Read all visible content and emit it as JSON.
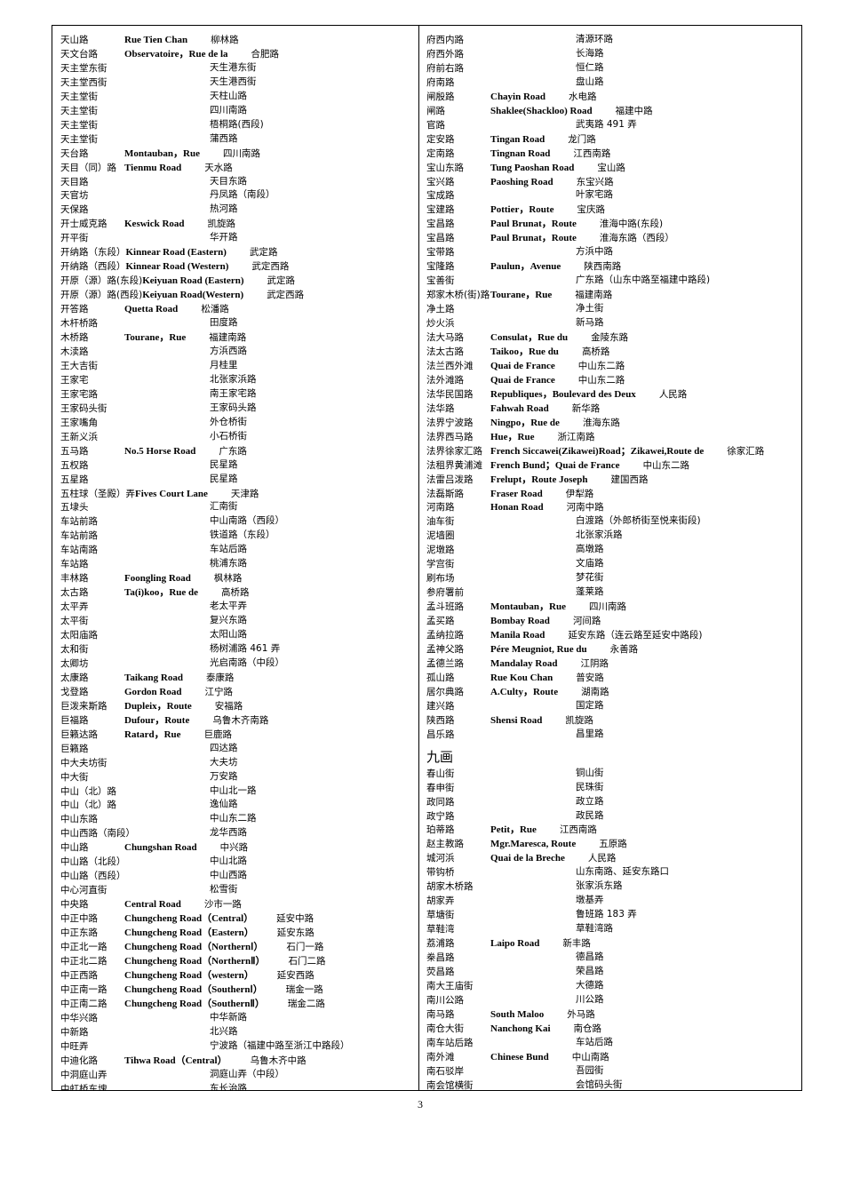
{
  "left_rows": [
    [
      "天山路",
      "Rue Tien Chan",
      "柳林路"
    ],
    [
      "天文台路",
      "Observatoire，Rue de la",
      "合肥路"
    ],
    [
      "天主堂东街",
      "",
      "天生港东街"
    ],
    [
      "天主堂西街",
      "",
      "天生港西街"
    ],
    [
      "天主堂街",
      "",
      "天柱山路"
    ],
    [
      "天主堂街",
      "",
      "四川南路"
    ],
    [
      "天主堂街",
      "",
      "梧桐路(西段)"
    ],
    [
      "天主堂街",
      "",
      "蒲西路"
    ],
    [
      "天台路",
      "Montauban，Rue",
      "四川南路"
    ],
    [
      "天目（同）路",
      "Tienmu Road",
      "天水路"
    ],
    [
      "天目路",
      "",
      "天目东路"
    ],
    [
      "天官坊",
      "",
      "丹凤路（南段）"
    ],
    [
      "天保路",
      "",
      "热河路"
    ],
    [
      "开士威克路",
      "Keswick Road",
      "凯旋路"
    ],
    [
      "开平街",
      "",
      "华开路"
    ],
    [
      "开纳路（东段）",
      "Kinnear Road (Eastern)",
      "武定路"
    ],
    [
      "开纳路（西段）",
      "Kinnear Road (Western)",
      "武定西路"
    ],
    [
      "开原（源）路(东段)",
      "Keiyuan Road (Eastern)",
      "武定路"
    ],
    [
      "开原（源）路(西段)",
      "Keiyuan Road(Western)",
      "武定西路"
    ],
    [
      "开答路",
      "Quetta Road",
      "松潘路"
    ],
    [
      "木杆桥路",
      "",
      "田度路"
    ],
    [
      "木桥路",
      "Tourane，Rue",
      "福建南路"
    ],
    [
      "木渎路",
      "",
      "方浜西路"
    ],
    [
      "王大吉街",
      "",
      "月桂里"
    ],
    [
      "王家宅",
      "",
      "北张家浜路"
    ],
    [
      "王家宅路",
      "",
      "南王家宅路"
    ],
    [
      "王家码头街",
      "",
      "王家码头路"
    ],
    [
      "王家嘴角",
      "",
      "外仓桥街"
    ],
    [
      "王新义浜",
      "",
      "小石桥街"
    ],
    [
      "五马路",
      "No.5 Horse Road",
      "广东路"
    ],
    [
      "五权路",
      "",
      "民星路"
    ],
    [
      "五星路",
      "",
      "民星路"
    ],
    [
      "五柱球（圣殿）弄",
      "Fives Court Lane",
      "天津路"
    ],
    [
      "五埭头",
      "",
      "汇南街"
    ],
    [
      "车站前路",
      "",
      "中山南路（西段）"
    ],
    [
      "车站前路",
      "",
      "铁道路（东段）"
    ],
    [
      "车站南路",
      "",
      "车站后路"
    ],
    [
      "车站路",
      "",
      "桃浦东路"
    ],
    [
      "丰林路",
      "Foongling Road",
      "枫林路"
    ],
    [
      "太古路",
      "Ta(i)koo，Rue de",
      "高桥路"
    ],
    [
      "太平弄",
      "",
      "老太平弄"
    ],
    [
      "太平街",
      "",
      "复兴东路"
    ],
    [
      "太阳庙路",
      "",
      "太阳山路"
    ],
    [
      "太和街",
      "",
      "杨树浦路 461 弄"
    ],
    [
      "太卿坊",
      "",
      "光启南路（中段）"
    ],
    [
      "太康路",
      "Taikang Road",
      "泰康路"
    ],
    [
      "戈登路",
      "Gordon Road",
      "江宁路"
    ],
    [
      "巨泼来斯路",
      "Dupleix，Route",
      "安福路"
    ],
    [
      "巨福路",
      "Dufour，Route",
      "乌鲁木齐南路"
    ],
    [
      "巨籁达路",
      "Ratard，Rue",
      "巨鹿路"
    ],
    [
      "巨籁路",
      "",
      "四达路"
    ],
    [
      "中大夫坊街",
      "",
      "大夫坊"
    ],
    [
      "中大街",
      "",
      "万安路"
    ],
    [
      "中山（北）路",
      "",
      "中山北一路"
    ],
    [
      "中山（北）路",
      "",
      "逸仙路"
    ],
    [
      "中山东路",
      "",
      "中山东二路"
    ],
    [
      "中山西路（南段）",
      "",
      "龙华西路"
    ],
    [
      "中山路",
      "Chungshan Road",
      "中兴路"
    ],
    [
      "中山路（北段）",
      "",
      "中山北路"
    ],
    [
      "中山路（西段）",
      "",
      "中山西路"
    ],
    [
      "中心河直街",
      "",
      "松雪街"
    ],
    [
      "中央路",
      "Central Road",
      "沙市一路"
    ],
    [
      "中正中路",
      "Chungcheng Road（Central）",
      "延安中路"
    ],
    [
      "中正东路",
      "Chungcheng Road（Eastern）",
      "延安东路"
    ],
    [
      "中正北一路",
      "Chungcheng Road（NorthernⅠ）",
      "石门一路"
    ],
    [
      "中正北二路",
      "Chungcheng Road（NorthernⅡ）",
      "石门二路"
    ],
    [
      "中正西路",
      "Chungcheng Road（western）",
      "延安西路"
    ],
    [
      "中正南一路",
      "Chungcheng Road（SouthernⅠ）",
      "瑞金一路"
    ],
    [
      "中正南二路",
      "Chungcheng Road（SouthernⅡ）",
      "瑞金二路"
    ],
    [
      "中华兴路",
      "",
      "中华新路"
    ],
    [
      "中新路",
      "",
      "北兴路"
    ],
    [
      "中旺弄",
      "",
      "宁波路（福建中路至浙江中路段）"
    ],
    [
      "中迪化路",
      "Tihwa Road（Central）",
      "乌鲁木齐中路"
    ],
    [
      "中洞庭山弄",
      "",
      "洞庭山弄（中段）"
    ],
    [
      "中虹桥东塊",
      "",
      "东长治路"
    ]
  ],
  "right_rows": [
    [
      "府西内路",
      "",
      "清源环路"
    ],
    [
      "府西外路",
      "",
      "长海路"
    ],
    [
      "府前右路",
      "",
      "恒仁路"
    ],
    [
      "府南路",
      "",
      "盘山路"
    ],
    [
      "闸殷路",
      "Chayin Road",
      "水电路"
    ],
    [
      "闸路",
      "Shaklee(Shackloo) Road",
      "福建中路"
    ],
    [
      "官路",
      "",
      "武夷路 491 弄"
    ],
    [
      "定安路",
      "Tingan Road",
      "龙门路"
    ],
    [
      "定南路",
      "Tingnan Road",
      "江西南路"
    ],
    [
      "宝山东路",
      "Tung Paoshan Road",
      "宝山路"
    ],
    [
      "宝兴路",
      "Paoshing Road",
      "东宝兴路"
    ],
    [
      "宝成路",
      "",
      "叶家宅路"
    ],
    [
      "宝建路",
      "Pottier，Route",
      "宝庆路"
    ],
    [
      "宝昌路",
      "Paul Brunat，Route",
      "淮海中路(东段)"
    ],
    [
      "宝昌路",
      "Paul Brunat，Route",
      "淮海东路（西段）"
    ],
    [
      "宝带路",
      "",
      "方浜中路"
    ],
    [
      "宝隆路",
      "Paulun，Avenue",
      "陕西南路"
    ],
    [
      "宝善街",
      "",
      "广东路（山东中路至福建中路段)"
    ],
    [
      "郑家木桥(街)路",
      "Tourane，Rue",
      "福建南路"
    ],
    [
      "净土路",
      "",
      "净土街"
    ],
    [
      "炒火浜",
      "",
      "新马路"
    ],
    [
      "法大马路",
      "Consulat，Rue du",
      "金陵东路"
    ],
    [
      "法太古路",
      "Taikoo，Rue du",
      "高桥路"
    ],
    [
      "法兰西外滩",
      "Quai de France",
      "中山东二路"
    ],
    [
      "法外滩路",
      "Quai de France",
      "中山东二路"
    ],
    [
      "法华民国路",
      "Republiques，Boulevard des Deux",
      "人民路"
    ],
    [
      "法华路",
      "Fahwah Road",
      "新华路"
    ],
    [
      "法界宁波路",
      "Ningpo，Rue de",
      "淮海东路"
    ],
    [
      "法界西马路",
      "Hue，Rue",
      "浙江南路"
    ],
    [
      "法界徐家汇路",
      "French Siccawei(Zikawei)Road；Zikawei,Route de",
      "徐家汇路"
    ],
    [
      "法租界黄浦滩",
      "French Bund；Quai de France",
      "中山东二路"
    ],
    [
      "法雷吕泼路",
      "Frelupt，Route Joseph",
      "建国西路"
    ],
    [
      "法磊斯路",
      "Fraser Road",
      "伊犁路"
    ],
    [
      "河南路",
      "Honan Road",
      "河南中路"
    ],
    [
      "油车街",
      "",
      "白渡路（外郎桥街至悦来街段)"
    ],
    [
      "泥墙圈",
      "",
      "北张家浜路"
    ],
    [
      "泥墩路",
      "",
      "高墩路"
    ],
    [
      "学宫街",
      "",
      "文庙路"
    ],
    [
      "刷布场",
      "",
      "梦花街"
    ],
    [
      "参府署前",
      "",
      "蓬莱路"
    ],
    [
      "孟斗班路",
      "Montauban，Rue",
      "四川南路"
    ],
    [
      "孟买路",
      "Bombay Road",
      "河间路"
    ],
    [
      "孟纳拉路",
      "Manila Road",
      "延安东路（连云路至延安中路段)"
    ],
    [
      "孟神父路",
      "Pére Meugniot, Rue du",
      "永善路"
    ],
    [
      "孟德兰路",
      "Mandalay Road",
      "江阴路"
    ],
    [
      "孤山路",
      "Rue Kou Chan",
      "普安路"
    ],
    [
      "居尔典路",
      "A.Culty，Route",
      "湖南路"
    ],
    [
      "建兴路",
      "",
      "国定路"
    ],
    [
      "陕西路",
      "Shensi Road",
      "凯旋路"
    ],
    [
      "昌乐路",
      "",
      "昌里路"
    ]
  ],
  "section_heading": "九画",
  "right_rows_2": [
    [
      "春山街",
      "",
      "铜山街"
    ],
    [
      "春申街",
      "",
      "民珠街"
    ],
    [
      "政同路",
      "",
      "政立路"
    ],
    [
      "政宁路",
      "",
      "政民路"
    ],
    [
      "珀蒂路",
      "Petit，Rue",
      "江西南路"
    ],
    [
      "赵主教路",
      "Mgr.Maresca, Route",
      "五原路"
    ],
    [
      "城河浜",
      "Quai de la Breche",
      "人民路"
    ],
    [
      "带钩桥",
      "",
      "山东南路、延安东路口"
    ],
    [
      "胡家木桥路",
      "",
      "张家浜东路"
    ],
    [
      "胡家弄",
      "",
      "墩基弄"
    ],
    [
      "草塘街",
      "",
      "鲁班路 183 弄"
    ],
    [
      "草鞋湾",
      "",
      "草鞋湾路"
    ],
    [
      "荔浦路",
      "Laipo Road",
      "新丰路"
    ],
    [
      "桊昌路",
      "",
      "德昌路"
    ],
    [
      "荧昌路",
      "",
      "荣昌路"
    ],
    [
      "南大王庙街",
      "",
      "大德路"
    ],
    [
      "南川公路",
      "",
      "川公路"
    ],
    [
      "南马路",
      "South Maloo",
      "外马路"
    ],
    [
      "南仓大街",
      "Nanchong Kai",
      "南仓路"
    ],
    [
      "南车站后路",
      "",
      "车站后路"
    ],
    [
      "南外滩",
      "Chinese Bund",
      "中山南路"
    ],
    [
      "南石驳岸",
      "",
      "吾园街"
    ],
    [
      "南会馆横街",
      "",
      "会馆码头街"
    ]
  ],
  "page_number": "3"
}
